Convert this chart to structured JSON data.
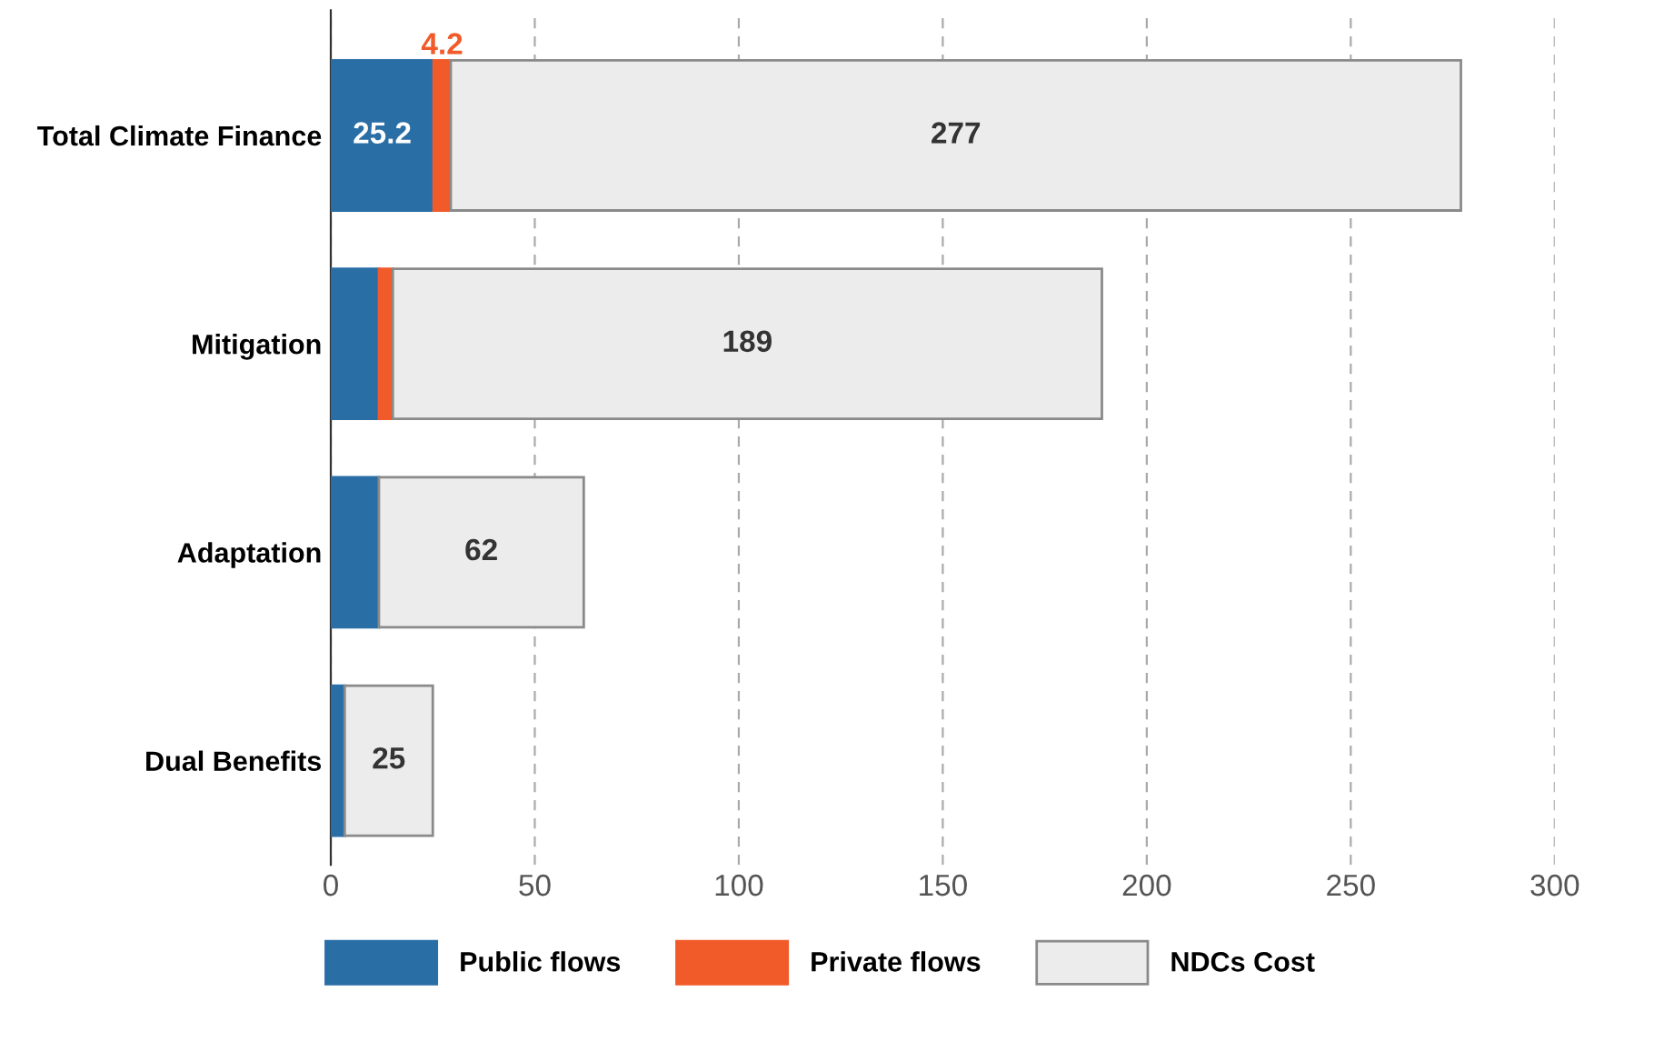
{
  "chart_data": {
    "type": "bar",
    "orientation": "horizontal",
    "stacked": true,
    "categories": [
      "Total Climate Finance",
      "Mitigation",
      "Adaptation",
      "Dual Benefits"
    ],
    "series": [
      {
        "name": "Public flows",
        "color": "#2a6ea6",
        "values": [
          25.2,
          11.8,
          11.8,
          3.4
        ],
        "value_labels": [
          "25.2",
          null,
          null,
          null
        ]
      },
      {
        "name": "Private flows",
        "color": "#f15a29",
        "values": [
          4.2,
          3.4,
          null,
          null
        ],
        "value_labels": [
          "4.2",
          null,
          null,
          null
        ]
      },
      {
        "name": "NDCs Cost",
        "color": "#ececec",
        "values": [
          247.6,
          173.8,
          50.2,
          21.6
        ]
      }
    ],
    "totals": [
      "277",
      "189",
      "62",
      "25"
    ],
    "xlim": [
      0,
      300
    ],
    "xticks": [
      0,
      50,
      100,
      150,
      200,
      250,
      300
    ],
    "grid": "x",
    "legend": "bottom"
  }
}
